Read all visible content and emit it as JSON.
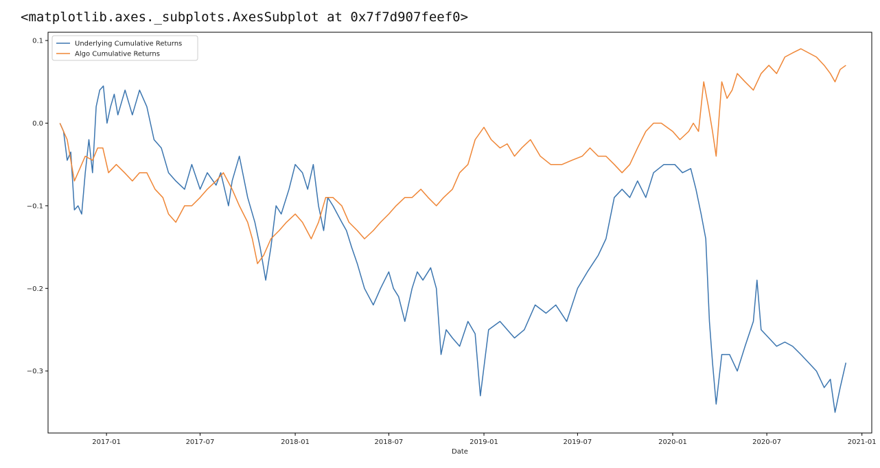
{
  "output": {
    "repr": "<matplotlib.axes._subplots.AxesSubplot at 0x7f7d907feef0>"
  },
  "colors": {
    "underlying": "#3b75af",
    "algo": "#ef8636",
    "axis": "#000000",
    "legend_border": "#cccccc"
  },
  "chart_data": {
    "type": "line",
    "title": "",
    "xlabel": "Date",
    "ylabel": "",
    "x_axis_kind": "date",
    "xlim": [
      "2016-09-10",
      "2021-01-20"
    ],
    "ylim": [
      -0.375,
      0.11
    ],
    "grid": false,
    "legend_position": "top-left",
    "xticks": [
      "2017-01-01",
      "2017-07-01",
      "2018-01-01",
      "2018-07-01",
      "2019-01-01",
      "2019-07-01",
      "2020-01-01",
      "2020-07-01",
      "2021-01-01"
    ],
    "xtick_labels": [
      "2017-01",
      "2017-07",
      "2018-01",
      "2018-07",
      "2019-01",
      "2019-07",
      "2020-01",
      "2020-07",
      "2021-01"
    ],
    "yticks": [
      0.1,
      0.0,
      -0.1,
      -0.2,
      -0.3
    ],
    "ytick_labels": [
      "0.1",
      "0.0",
      "−0.1",
      "−0.2",
      "−0.3"
    ],
    "series": [
      {
        "name": "Underlying Cumulative Returns",
        "x": [
          "2016-10-03",
          "2016-10-10",
          "2016-10-17",
          "2016-10-24",
          "2016-10-31",
          "2016-11-07",
          "2016-11-14",
          "2016-11-21",
          "2016-11-28",
          "2016-12-05",
          "2016-12-12",
          "2016-12-19",
          "2016-12-26",
          "2017-01-02",
          "2017-01-09",
          "2017-01-16",
          "2017-01-23",
          "2017-02-06",
          "2017-02-20",
          "2017-03-06",
          "2017-03-20",
          "2017-04-03",
          "2017-04-17",
          "2017-05-01",
          "2017-05-15",
          "2017-06-01",
          "2017-06-15",
          "2017-07-01",
          "2017-07-15",
          "2017-08-01",
          "2017-08-10",
          "2017-08-25",
          "2017-09-01",
          "2017-09-15",
          "2017-10-01",
          "2017-10-15",
          "2017-10-25",
          "2017-11-05",
          "2017-11-15",
          "2017-11-25",
          "2017-12-05",
          "2017-12-20",
          "2018-01-01",
          "2018-01-15",
          "2018-01-25",
          "2018-02-05",
          "2018-02-15",
          "2018-02-25",
          "2018-03-05",
          "2018-03-15",
          "2018-04-01",
          "2018-04-10",
          "2018-04-20",
          "2018-05-01",
          "2018-05-15",
          "2018-06-01",
          "2018-06-15",
          "2018-07-01",
          "2018-07-10",
          "2018-07-20",
          "2018-08-01",
          "2018-08-15",
          "2018-08-25",
          "2018-09-05",
          "2018-09-20",
          "2018-10-01",
          "2018-10-10",
          "2018-10-20",
          "2018-11-01",
          "2018-11-15",
          "2018-12-01",
          "2018-12-15",
          "2018-12-25",
          "2019-01-10",
          "2019-02-01",
          "2019-03-01",
          "2019-03-20",
          "2019-04-10",
          "2019-05-01",
          "2019-05-20",
          "2019-06-10",
          "2019-07-01",
          "2019-07-20",
          "2019-08-10",
          "2019-08-25",
          "2019-09-10",
          "2019-09-25",
          "2019-10-10",
          "2019-10-25",
          "2019-11-10",
          "2019-11-25",
          "2019-12-15",
          "2020-01-05",
          "2020-01-20",
          "2020-02-05",
          "2020-02-15",
          "2020-02-25",
          "2020-03-05",
          "2020-03-12",
          "2020-03-18",
          "2020-03-25",
          "2020-04-05",
          "2020-04-20",
          "2020-05-05",
          "2020-05-20",
          "2020-06-05",
          "2020-06-12",
          "2020-06-20",
          "2020-07-05",
          "2020-07-20",
          "2020-08-05",
          "2020-08-20",
          "2020-09-05",
          "2020-09-20",
          "2020-10-05",
          "2020-10-20",
          "2020-11-01",
          "2020-11-10",
          "2020-11-20",
          "2020-12-01"
        ],
        "y": [
          0.0,
          -0.01,
          -0.045,
          -0.035,
          -0.105,
          -0.1,
          -0.11,
          -0.06,
          -0.02,
          -0.06,
          0.02,
          0.04,
          0.045,
          0.0,
          0.02,
          0.035,
          0.01,
          0.04,
          0.01,
          0.04,
          0.02,
          -0.02,
          -0.03,
          -0.06,
          -0.07,
          -0.08,
          -0.05,
          -0.08,
          -0.06,
          -0.075,
          -0.06,
          -0.1,
          -0.07,
          -0.04,
          -0.09,
          -0.12,
          -0.15,
          -0.19,
          -0.15,
          -0.1,
          -0.11,
          -0.08,
          -0.05,
          -0.06,
          -0.08,
          -0.05,
          -0.1,
          -0.13,
          -0.09,
          -0.1,
          -0.12,
          -0.13,
          -0.15,
          -0.17,
          -0.2,
          -0.22,
          -0.2,
          -0.18,
          -0.2,
          -0.21,
          -0.24,
          -0.2,
          -0.18,
          -0.19,
          -0.175,
          -0.2,
          -0.28,
          -0.25,
          -0.26,
          -0.27,
          -0.24,
          -0.255,
          -0.33,
          -0.25,
          -0.24,
          -0.26,
          -0.25,
          -0.22,
          -0.23,
          -0.22,
          -0.24,
          -0.2,
          -0.18,
          -0.16,
          -0.14,
          -0.09,
          -0.08,
          -0.09,
          -0.07,
          -0.09,
          -0.06,
          -0.05,
          -0.05,
          -0.06,
          -0.055,
          -0.08,
          -0.11,
          -0.14,
          -0.24,
          -0.29,
          -0.34,
          -0.28,
          -0.28,
          -0.3,
          -0.27,
          -0.24,
          -0.19,
          -0.25,
          -0.26,
          -0.27,
          -0.265,
          -0.27,
          -0.28,
          -0.29,
          -0.3,
          -0.32,
          -0.31,
          -0.35,
          -0.32,
          -0.29
        ]
      },
      {
        "name": "Algo Cumulative Returns",
        "x": [
          "2016-10-03",
          "2016-10-10",
          "2016-10-17",
          "2016-10-31",
          "2016-11-07",
          "2016-11-21",
          "2016-12-05",
          "2016-12-15",
          "2016-12-25",
          "2017-01-05",
          "2017-01-20",
          "2017-02-05",
          "2017-02-20",
          "2017-03-06",
          "2017-03-20",
          "2017-04-05",
          "2017-04-20",
          "2017-05-01",
          "2017-05-15",
          "2017-06-01",
          "2017-06-15",
          "2017-07-01",
          "2017-07-15",
          "2017-08-01",
          "2017-08-15",
          "2017-09-01",
          "2017-09-15",
          "2017-10-01",
          "2017-10-10",
          "2017-10-20",
          "2017-11-01",
          "2017-11-15",
          "2017-12-01",
          "2017-12-15",
          "2018-01-01",
          "2018-01-15",
          "2018-02-01",
          "2018-02-15",
          "2018-03-01",
          "2018-03-15",
          "2018-04-01",
          "2018-04-15",
          "2018-05-01",
          "2018-05-15",
          "2018-06-01",
          "2018-06-15",
          "2018-07-01",
          "2018-07-15",
          "2018-08-01",
          "2018-08-15",
          "2018-09-01",
          "2018-09-15",
          "2018-10-01",
          "2018-10-15",
          "2018-11-01",
          "2018-11-15",
          "2018-12-01",
          "2018-12-15",
          "2019-01-01",
          "2019-01-15",
          "2019-02-01",
          "2019-02-15",
          "2019-03-01",
          "2019-03-15",
          "2019-04-01",
          "2019-04-20",
          "2019-05-10",
          "2019-06-01",
          "2019-06-20",
          "2019-07-10",
          "2019-07-25",
          "2019-08-10",
          "2019-08-25",
          "2019-09-10",
          "2019-09-25",
          "2019-10-10",
          "2019-10-25",
          "2019-11-10",
          "2019-11-25",
          "2019-12-10",
          "2020-01-01",
          "2020-01-15",
          "2020-02-01",
          "2020-02-10",
          "2020-02-20",
          "2020-03-01",
          "2020-03-10",
          "2020-03-18",
          "2020-03-25",
          "2020-04-05",
          "2020-04-15",
          "2020-04-25",
          "2020-05-05",
          "2020-05-20",
          "2020-06-05",
          "2020-06-20",
          "2020-07-05",
          "2020-07-20",
          "2020-08-05",
          "2020-08-20",
          "2020-09-05",
          "2020-09-20",
          "2020-10-05",
          "2020-10-20",
          "2020-11-01",
          "2020-11-10",
          "2020-11-20",
          "2020-12-01"
        ],
        "y": [
          0.0,
          -0.01,
          -0.02,
          -0.07,
          -0.06,
          -0.04,
          -0.045,
          -0.03,
          -0.03,
          -0.06,
          -0.05,
          -0.06,
          -0.07,
          -0.06,
          -0.06,
          -0.08,
          -0.09,
          -0.11,
          -0.12,
          -0.1,
          -0.1,
          -0.09,
          -0.08,
          -0.07,
          -0.06,
          -0.08,
          -0.1,
          -0.12,
          -0.14,
          -0.17,
          -0.16,
          -0.14,
          -0.13,
          -0.12,
          -0.11,
          -0.12,
          -0.14,
          -0.12,
          -0.09,
          -0.09,
          -0.1,
          -0.12,
          -0.13,
          -0.14,
          -0.13,
          -0.12,
          -0.11,
          -0.1,
          -0.09,
          -0.09,
          -0.08,
          -0.09,
          -0.1,
          -0.09,
          -0.08,
          -0.06,
          -0.05,
          -0.02,
          -0.005,
          -0.02,
          -0.03,
          -0.025,
          -0.04,
          -0.03,
          -0.02,
          -0.04,
          -0.05,
          -0.05,
          -0.045,
          -0.04,
          -0.03,
          -0.04,
          -0.04,
          -0.05,
          -0.06,
          -0.05,
          -0.03,
          -0.01,
          0.0,
          0.0,
          -0.01,
          -0.02,
          -0.01,
          0.0,
          -0.01,
          0.05,
          0.02,
          -0.01,
          -0.04,
          0.05,
          0.03,
          0.04,
          0.06,
          0.05,
          0.04,
          0.06,
          0.07,
          0.06,
          0.08,
          0.085,
          0.09,
          0.085,
          0.08,
          0.07,
          0.06,
          0.05,
          0.065,
          0.07
        ]
      }
    ]
  }
}
